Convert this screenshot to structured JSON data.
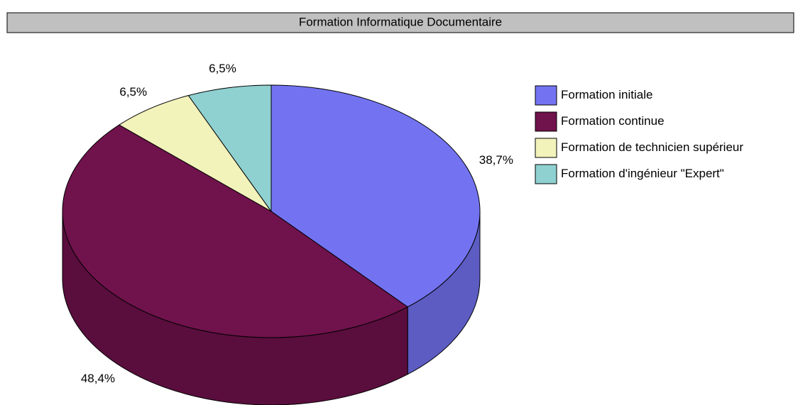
{
  "chart_data": {
    "type": "pie",
    "title": "Formation Informatique Documentaire",
    "categories": [
      "Formation initiale",
      "Formation continue",
      "Formation de technicien supérieur",
      "Formation d'ingénieur \"Expert\""
    ],
    "values": [
      38.7,
      48.4,
      6.5,
      6.5
    ],
    "value_labels": [
      "38,7%",
      "48,4%",
      "6,5%",
      "6,5%"
    ],
    "colors": [
      "#7373f2",
      "#70124c",
      "#f2f2bb",
      "#8fd0d0"
    ],
    "legend": "right"
  }
}
